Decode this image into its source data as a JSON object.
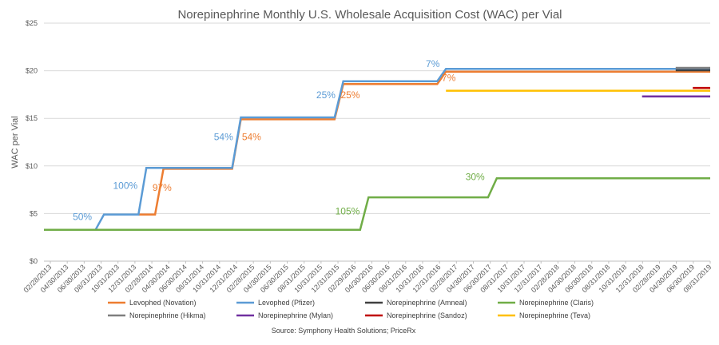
{
  "chart_data": {
    "type": "line",
    "title": "Norepinephrine Monthly U.S. Wholesale Acquisition Cost (WAC) per Vial",
    "ylabel": "WAC per Vial",
    "source": "Source: Symphony Health Solutions; PriceRx",
    "ylim": [
      0,
      25
    ],
    "yticks": [
      0,
      5,
      10,
      15,
      20,
      25
    ],
    "ytick_labels": [
      "$0",
      "$5",
      "$10",
      "$15",
      "$20",
      "$25"
    ],
    "xlim": [
      "2013-02-28",
      "2019-08-31"
    ],
    "xtick_labels": [
      "02/28/2013",
      "04/30/2013",
      "06/30/2013",
      "08/31/2013",
      "10/31/2013",
      "12/31/2013",
      "02/28/2014",
      "04/30/2014",
      "06/30/2014",
      "08/31/2014",
      "10/31/2014",
      "12/31/2014",
      "02/28/2015",
      "04/30/2015",
      "06/30/2015",
      "08/31/2015",
      "10/31/2015",
      "12/31/2015",
      "02/29/2016",
      "04/30/2016",
      "06/30/2016",
      "08/31/2016",
      "10/31/2016",
      "12/31/2016",
      "02/28/2017",
      "04/30/2017",
      "06/30/2017",
      "08/31/2017",
      "10/31/2017",
      "12/31/2017",
      "02/28/2018",
      "04/30/2018",
      "06/30/2018",
      "08/31/2018",
      "10/31/2018",
      "12/31/2018",
      "02/28/2019",
      "04/30/2019",
      "06/30/2019",
      "08/31/2019"
    ],
    "grid": "horizontal",
    "legend_position": "bottom",
    "series": [
      {
        "name": "Levophed (Novation)",
        "color": "#ED7D31",
        "x": [
          "2014-01-31",
          "2014-03-31",
          "2014-04-30",
          "2014-12-31",
          "2015-01-31",
          "2015-12-31",
          "2016-01-31",
          "2016-12-31",
          "2017-01-31",
          "2019-08-31"
        ],
        "y": [
          4.9,
          4.9,
          9.7,
          9.7,
          14.9,
          14.9,
          18.6,
          18.6,
          19.9,
          19.9
        ]
      },
      {
        "name": "Levophed (Pfizer)",
        "color": "#5B9BD5",
        "x": [
          "2013-08-31",
          "2013-09-30",
          "2014-01-31",
          "2014-02-28",
          "2014-12-31",
          "2015-01-31",
          "2015-12-31",
          "2016-01-31",
          "2016-12-31",
          "2017-01-31",
          "2019-08-31"
        ],
        "y": [
          3.3,
          4.9,
          4.9,
          9.8,
          9.8,
          15.1,
          15.1,
          18.9,
          18.9,
          20.2,
          20.2
        ]
      },
      {
        "name": "Norepinephrine (Amneal)",
        "color": "#404040",
        "x": [
          "2019-04-30",
          "2019-08-31"
        ],
        "y": [
          20.05,
          20.05
        ]
      },
      {
        "name": "Norepinephrine (Claris)",
        "color": "#70AD47",
        "x": [
          "2013-02-28",
          "2016-03-31",
          "2016-04-30",
          "2017-06-30",
          "2017-07-31",
          "2019-08-31"
        ],
        "y": [
          3.3,
          3.3,
          6.7,
          6.7,
          8.7,
          8.7
        ]
      },
      {
        "name": "Norepinephrine (Hikma)",
        "color": "#7F7F7F",
        "x": [
          "2019-04-30",
          "2019-08-31"
        ],
        "y": [
          20.3,
          20.3
        ]
      },
      {
        "name": "Norepinephrine (Mylan)",
        "color": "#7030A0",
        "x": [
          "2018-12-31",
          "2019-08-31"
        ],
        "y": [
          17.3,
          17.3
        ]
      },
      {
        "name": "Norepinephrine (Sandoz)",
        "color": "#C00000",
        "x": [
          "2019-06-30",
          "2019-08-31"
        ],
        "y": [
          18.2,
          18.2
        ]
      },
      {
        "name": "Norepinephrine (Teva)",
        "color": "#FFC000",
        "x": [
          "2017-01-31",
          "2019-08-31"
        ],
        "y": [
          17.9,
          17.9
        ]
      }
    ],
    "annotations": [
      {
        "text": "50%",
        "series": "Levophed (Pfizer)",
        "x": "2013-07-15",
        "y": 4.3
      },
      {
        "text": "100%",
        "series": "Levophed (Pfizer)",
        "x": "2013-12-15",
        "y": 7.6
      },
      {
        "text": "97%",
        "series": "Levophed (Novation)",
        "x": "2014-04-25",
        "y": 7.4
      },
      {
        "text": "54%",
        "series": "Levophed (Pfizer)",
        "x": "2014-11-30",
        "y": 12.7
      },
      {
        "text": "54%",
        "series": "Levophed (Novation)",
        "x": "2015-03-10",
        "y": 12.7
      },
      {
        "text": "25%",
        "series": "Levophed (Pfizer)",
        "x": "2015-11-30",
        "y": 17.1
      },
      {
        "text": "25%",
        "series": "Levophed (Novation)",
        "x": "2016-02-25",
        "y": 17.1
      },
      {
        "text": "7%",
        "series": "Levophed (Pfizer)",
        "x": "2016-12-15",
        "y": 20.4
      },
      {
        "text": "7%",
        "series": "Levophed (Novation)",
        "x": "2017-02-10",
        "y": 18.9
      },
      {
        "text": "105%",
        "series": "Norepinephrine (Claris)",
        "x": "2016-02-15",
        "y": 4.9
      },
      {
        "text": "30%",
        "series": "Norepinephrine (Claris)",
        "x": "2017-05-15",
        "y": 8.5
      }
    ]
  }
}
